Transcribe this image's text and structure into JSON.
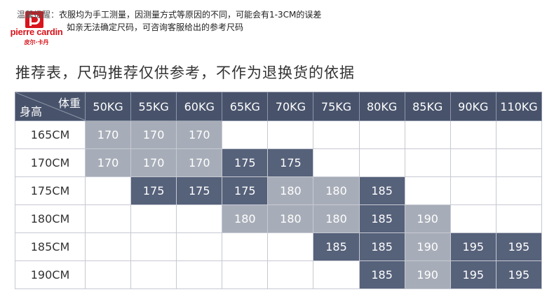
{
  "notice": {
    "prefix": "温馨提醒：",
    "line1": "衣服均为手工测量，因测量方式等原因的不同，可能会有1-3CM的误差",
    "line2": "如亲无法确定尺码，可咨询客服给出的参考尺码"
  },
  "logo": {
    "brand": "pierre cardin",
    "brand_cn": "皮尔·卡丹"
  },
  "heading": "推荐表，尺码推荐仅供参考，不作为退换货的依据",
  "table": {
    "corner_weight": "体重",
    "corner_height": "身高",
    "columns": [
      "50KG",
      "55KG",
      "60KG",
      "65KG",
      "70KG",
      "75KG",
      "80KG",
      "85KG",
      "90KG",
      "110KG"
    ],
    "rows": [
      {
        "label": "165CM",
        "cells": [
          "170",
          "170",
          "170",
          "",
          "",
          "",
          "",
          "",
          "",
          ""
        ]
      },
      {
        "label": "170CM",
        "cells": [
          "170",
          "170",
          "170",
          "175",
          "175",
          "",
          "",
          "",
          "",
          ""
        ]
      },
      {
        "label": "175CM",
        "cells": [
          "",
          "175",
          "175",
          "175",
          "180",
          "180",
          "185",
          "",
          "",
          ""
        ]
      },
      {
        "label": "180CM",
        "cells": [
          "",
          "",
          "",
          "180",
          "180",
          "180",
          "185",
          "190",
          "",
          ""
        ]
      },
      {
        "label": "185CM",
        "cells": [
          "",
          "",
          "",
          "",
          "",
          "185",
          "185",
          "190",
          "195",
          "195"
        ]
      },
      {
        "label": "190CM",
        "cells": [
          "",
          "",
          "",
          "",
          "",
          "",
          "185",
          "190",
          "195",
          "195"
        ]
      }
    ],
    "shade_colors": {
      "170": "light",
      "175": "dark",
      "180": "light",
      "185": "dark",
      "190": "light",
      "195": "dark"
    },
    "colors": {
      "header": "#48536b",
      "light": "#a7adb8",
      "dark": "#56617a"
    }
  }
}
